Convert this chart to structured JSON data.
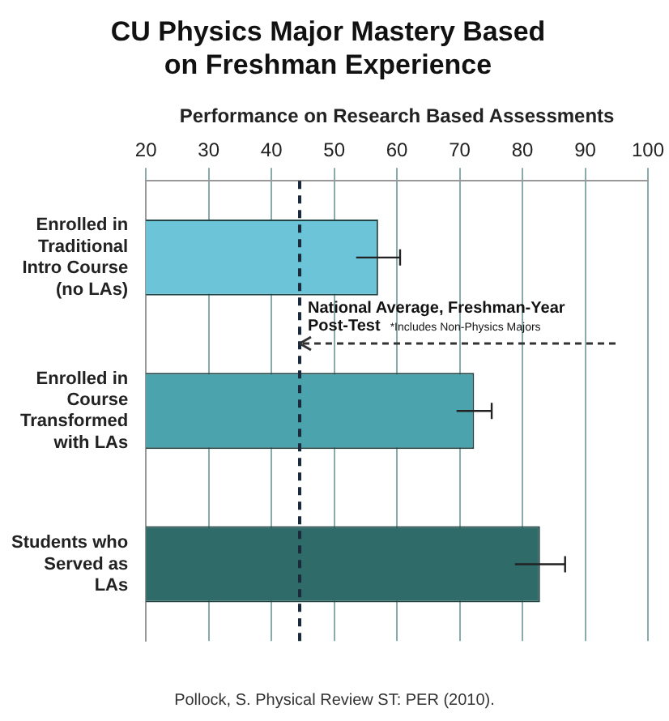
{
  "chart_data": {
    "type": "bar",
    "orientation": "horizontal",
    "title": "CU Physics Major Mastery Based on Freshman Experience",
    "xlabel": "Performance on Research Based Assessments",
    "categories": [
      "Enrolled in Traditional Intro Course (no LAs)",
      "Enrolled in Course Transformed with LAs",
      "Students who Served as LAs"
    ],
    "values": [
      57,
      72.3,
      82.8
    ],
    "colors": [
      "#6cc4d8",
      "#4aa3ad",
      "#2f6b68"
    ],
    "errors": [
      3.5,
      2.8,
      4
    ],
    "xlim": [
      20,
      100
    ],
    "xticks": [
      20,
      30,
      40,
      50,
      60,
      70,
      80,
      90,
      100
    ],
    "grid": "x",
    "ref_lines": [
      {
        "axis": "x",
        "value": 44.5,
        "label": "National Average, Freshman-Year Post-Test",
        "color": "#1a2a3a",
        "line_style": "dashed"
      }
    ],
    "annotations": [
      "*Includes Non-Physics Majors",
      "Pollock, S. Physical Review ST: PER (2010)."
    ]
  }
}
